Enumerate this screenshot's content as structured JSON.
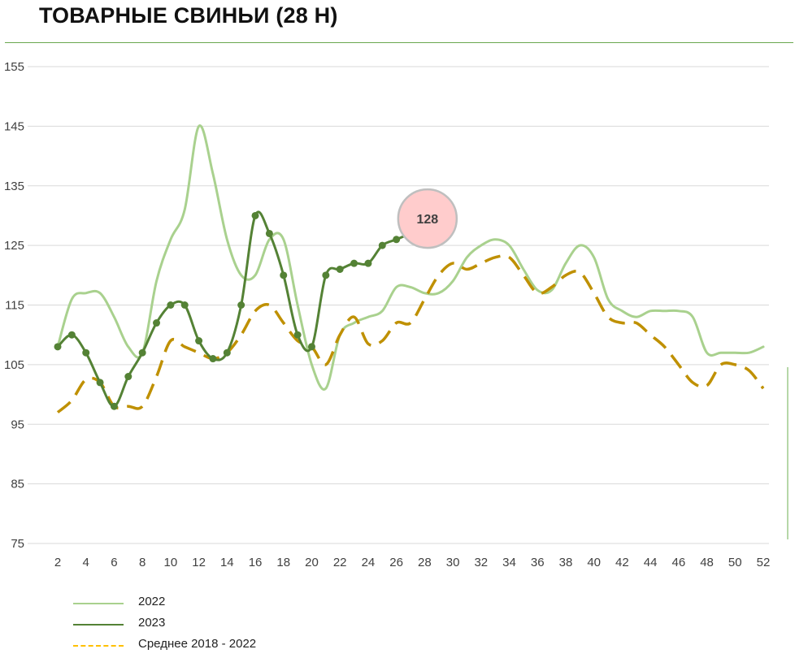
{
  "page": {
    "title": "ТОВАРНЫЕ СВИНЬИ (28 Н)"
  },
  "colors": {
    "s2022": "#a9d18e",
    "s2023": "#548235",
    "avg": "#bf9000",
    "callout_fill": "#ffcccc",
    "callout_stroke": "#bfbfbf",
    "grid": "#d9d9d9"
  },
  "chart_data": {
    "type": "line",
    "xlim": [
      2,
      52
    ],
    "ylim": [
      75,
      155
    ],
    "x_ticks": [
      2,
      4,
      6,
      8,
      10,
      12,
      14,
      16,
      18,
      20,
      22,
      24,
      26,
      28,
      30,
      32,
      34,
      36,
      38,
      40,
      42,
      44,
      46,
      48,
      50,
      52
    ],
    "y_ticks": [
      75,
      85,
      95,
      105,
      115,
      125,
      135,
      145,
      155
    ],
    "grid": "horizontal",
    "legend_position": "bottom-left",
    "series": [
      {
        "name": "2022",
        "style": "solid-light",
        "x": [
          2,
          3,
          4,
          5,
          6,
          7,
          8,
          9,
          10,
          11,
          12,
          13,
          14,
          15,
          16,
          17,
          18,
          19,
          20,
          21,
          22,
          23,
          24,
          25,
          26,
          27,
          28,
          29,
          30,
          31,
          32,
          33,
          34,
          35,
          36,
          37,
          38,
          39,
          40,
          41,
          42,
          43,
          44,
          45,
          46,
          47,
          48,
          49,
          50,
          51,
          52
        ],
        "y": [
          108,
          116,
          117,
          117,
          113,
          108,
          107,
          119,
          126,
          131,
          145,
          137,
          126,
          120,
          120,
          126,
          126,
          115,
          105,
          101,
          110,
          112,
          113,
          114,
          118,
          118,
          117,
          117,
          119,
          123,
          125,
          126,
          125,
          121,
          117.5,
          117.5,
          122,
          125,
          123,
          116,
          114,
          113,
          114,
          114,
          114,
          113,
          107,
          107,
          107,
          107,
          108
        ]
      },
      {
        "name": "2023",
        "style": "solid-markers",
        "x": [
          2,
          3,
          4,
          5,
          6,
          7,
          8,
          9,
          10,
          11,
          12,
          13,
          14,
          15,
          16,
          17,
          18,
          19,
          20,
          21,
          22,
          23,
          24,
          25,
          26,
          27
        ],
        "y": [
          108,
          110,
          107,
          102,
          98,
          103,
          107,
          112,
          115,
          115,
          109,
          106,
          107,
          115,
          130,
          127,
          120,
          110,
          108,
          120,
          121,
          122,
          122,
          125,
          126,
          127
        ]
      },
      {
        "name": "Среднее 2018 - 2022",
        "style": "dashed",
        "x": [
          2,
          3,
          4,
          5,
          6,
          7,
          8,
          9,
          10,
          11,
          12,
          13,
          14,
          15,
          16,
          17,
          18,
          19,
          20,
          21,
          22,
          23,
          24,
          25,
          26,
          27,
          28,
          29,
          30,
          31,
          32,
          33,
          34,
          35,
          36,
          37,
          38,
          39,
          40,
          41,
          42,
          43,
          44,
          45,
          46,
          47,
          48,
          49,
          50,
          51,
          52
        ],
        "y": [
          97,
          99,
          102.5,
          102,
          98,
          98,
          98,
          103,
          109,
          108,
          107,
          106,
          107,
          110,
          114,
          115,
          112,
          109,
          108,
          105,
          110,
          113,
          108.5,
          109,
          112,
          112,
          116,
          120,
          122,
          121,
          122,
          123,
          123,
          120,
          117,
          118,
          120,
          120.5,
          117,
          113,
          112,
          112,
          110,
          108,
          105,
          102,
          101.5,
          105,
          105,
          104,
          101
        ]
      }
    ],
    "annotations": [
      {
        "x": 28.2,
        "y": 129.5,
        "text": "128"
      }
    ]
  }
}
